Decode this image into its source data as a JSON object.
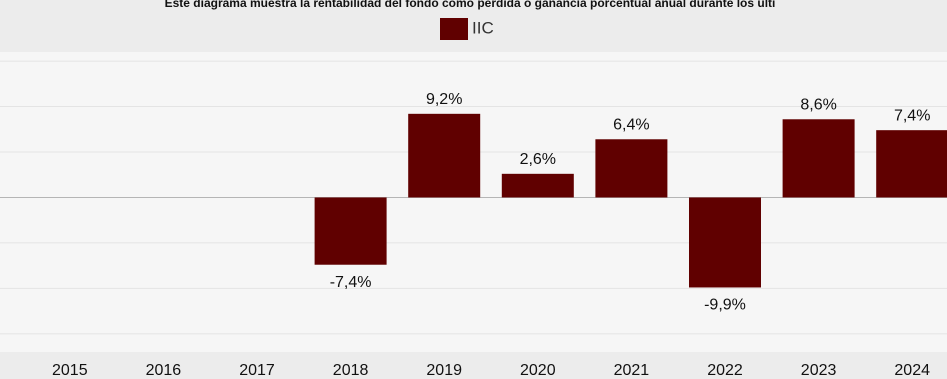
{
  "chart_data": {
    "type": "bar",
    "title": "Este diagrama muestra la rentabilidad del fondo como pérdida o ganancia porcentual anual durante los últi",
    "categories": [
      "2015",
      "2016",
      "2017",
      "2018",
      "2019",
      "2020",
      "2021",
      "2022",
      "2023",
      "2024"
    ],
    "series": [
      {
        "name": "IIC",
        "color": "#600000",
        "values": [
          null,
          null,
          null,
          -7.4,
          9.2,
          2.6,
          6.4,
          -9.9,
          8.6,
          7.4
        ],
        "value_labels": [
          null,
          null,
          null,
          "-7,4%",
          "9,2%",
          "2,6%",
          "6,4%",
          "-9,9%",
          "8,6%",
          "7,4%"
        ]
      }
    ],
    "ylim": [
      -17,
      16
    ],
    "yticks": [
      -15,
      -10,
      -5,
      0,
      5,
      10,
      15
    ],
    "grid": true
  }
}
